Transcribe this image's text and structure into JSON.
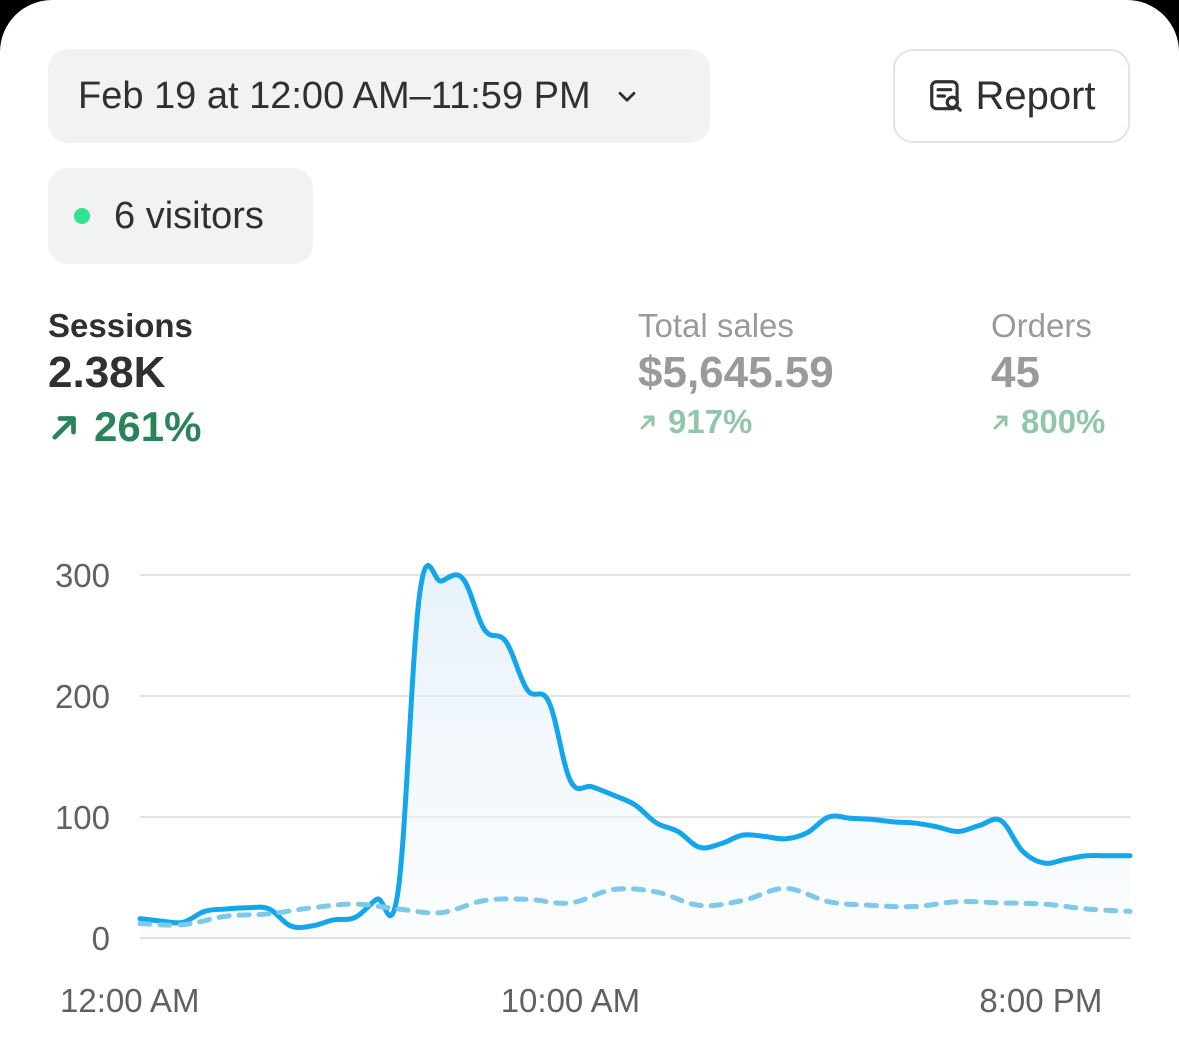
{
  "date_range": {
    "label": "Feb 19 at 12:00 AM–11:59 PM"
  },
  "report_button": {
    "label": "Report"
  },
  "visitors": {
    "label": "6 visitors",
    "dot_color": "#2fe28d"
  },
  "metrics": [
    {
      "label": "Sessions",
      "value": "2.38K",
      "delta": "261%",
      "active": true
    },
    {
      "label": "Total sales",
      "value": "$5,645.59",
      "delta": "917%",
      "active": false
    },
    {
      "label": "Orders",
      "value": "45",
      "delta": "800%",
      "active": false
    }
  ],
  "colors": {
    "accent_line": "#13a6ea",
    "comparison_line": "#7ec8ea",
    "positive_delta": "#29845a",
    "muted_delta": "#91c6ab"
  },
  "chart_data": {
    "type": "line",
    "title": "",
    "xlabel": "",
    "ylabel": "",
    "ylim": [
      0,
      300
    ],
    "y_ticks": [
      0,
      100,
      200,
      300
    ],
    "x_tick_labels": [
      "12:00 AM",
      "10:00 AM",
      "8:00 PM"
    ],
    "x_tick_hours": [
      0,
      10,
      20
    ],
    "xlim": [
      0,
      23
    ],
    "grid": true,
    "series": [
      {
        "style": "solid",
        "x": [
          0,
          0.5,
          1,
          1.5,
          2,
          2.5,
          3,
          3.5,
          4,
          4.5,
          5,
          5.5,
          6,
          6.5,
          7,
          7.5,
          8,
          8.5,
          9,
          9.5,
          10,
          10.5,
          11,
          11.5,
          12,
          12.5,
          13,
          13.5,
          14,
          14.5,
          15,
          15.5,
          16,
          16.5,
          17,
          17.5,
          18,
          18.5,
          19,
          19.5,
          20,
          20.5,
          21,
          21.5,
          22,
          22.5,
          23
        ],
        "y": [
          16,
          14,
          13,
          22,
          24,
          25,
          24,
          10,
          10,
          15,
          17,
          32,
          40,
          285,
          295,
          297,
          255,
          245,
          205,
          195,
          130,
          125,
          118,
          110,
          95,
          88,
          75,
          78,
          85,
          84,
          82,
          87,
          100,
          99,
          98,
          96,
          95,
          92,
          88,
          93,
          97,
          72,
          62,
          65,
          68,
          68,
          68
        ]
      },
      {
        "style": "dashed",
        "x": [
          0,
          1,
          2,
          3,
          4,
          5,
          6,
          7,
          8,
          9,
          10,
          11,
          12,
          13,
          14,
          15,
          16,
          17,
          18,
          19,
          20,
          21,
          22,
          23
        ],
        "y": [
          12,
          11,
          18,
          20,
          25,
          28,
          24,
          21,
          31,
          32,
          29,
          40,
          38,
          27,
          31,
          41,
          30,
          27,
          26,
          30,
          29,
          28,
          24,
          22
        ]
      }
    ]
  }
}
